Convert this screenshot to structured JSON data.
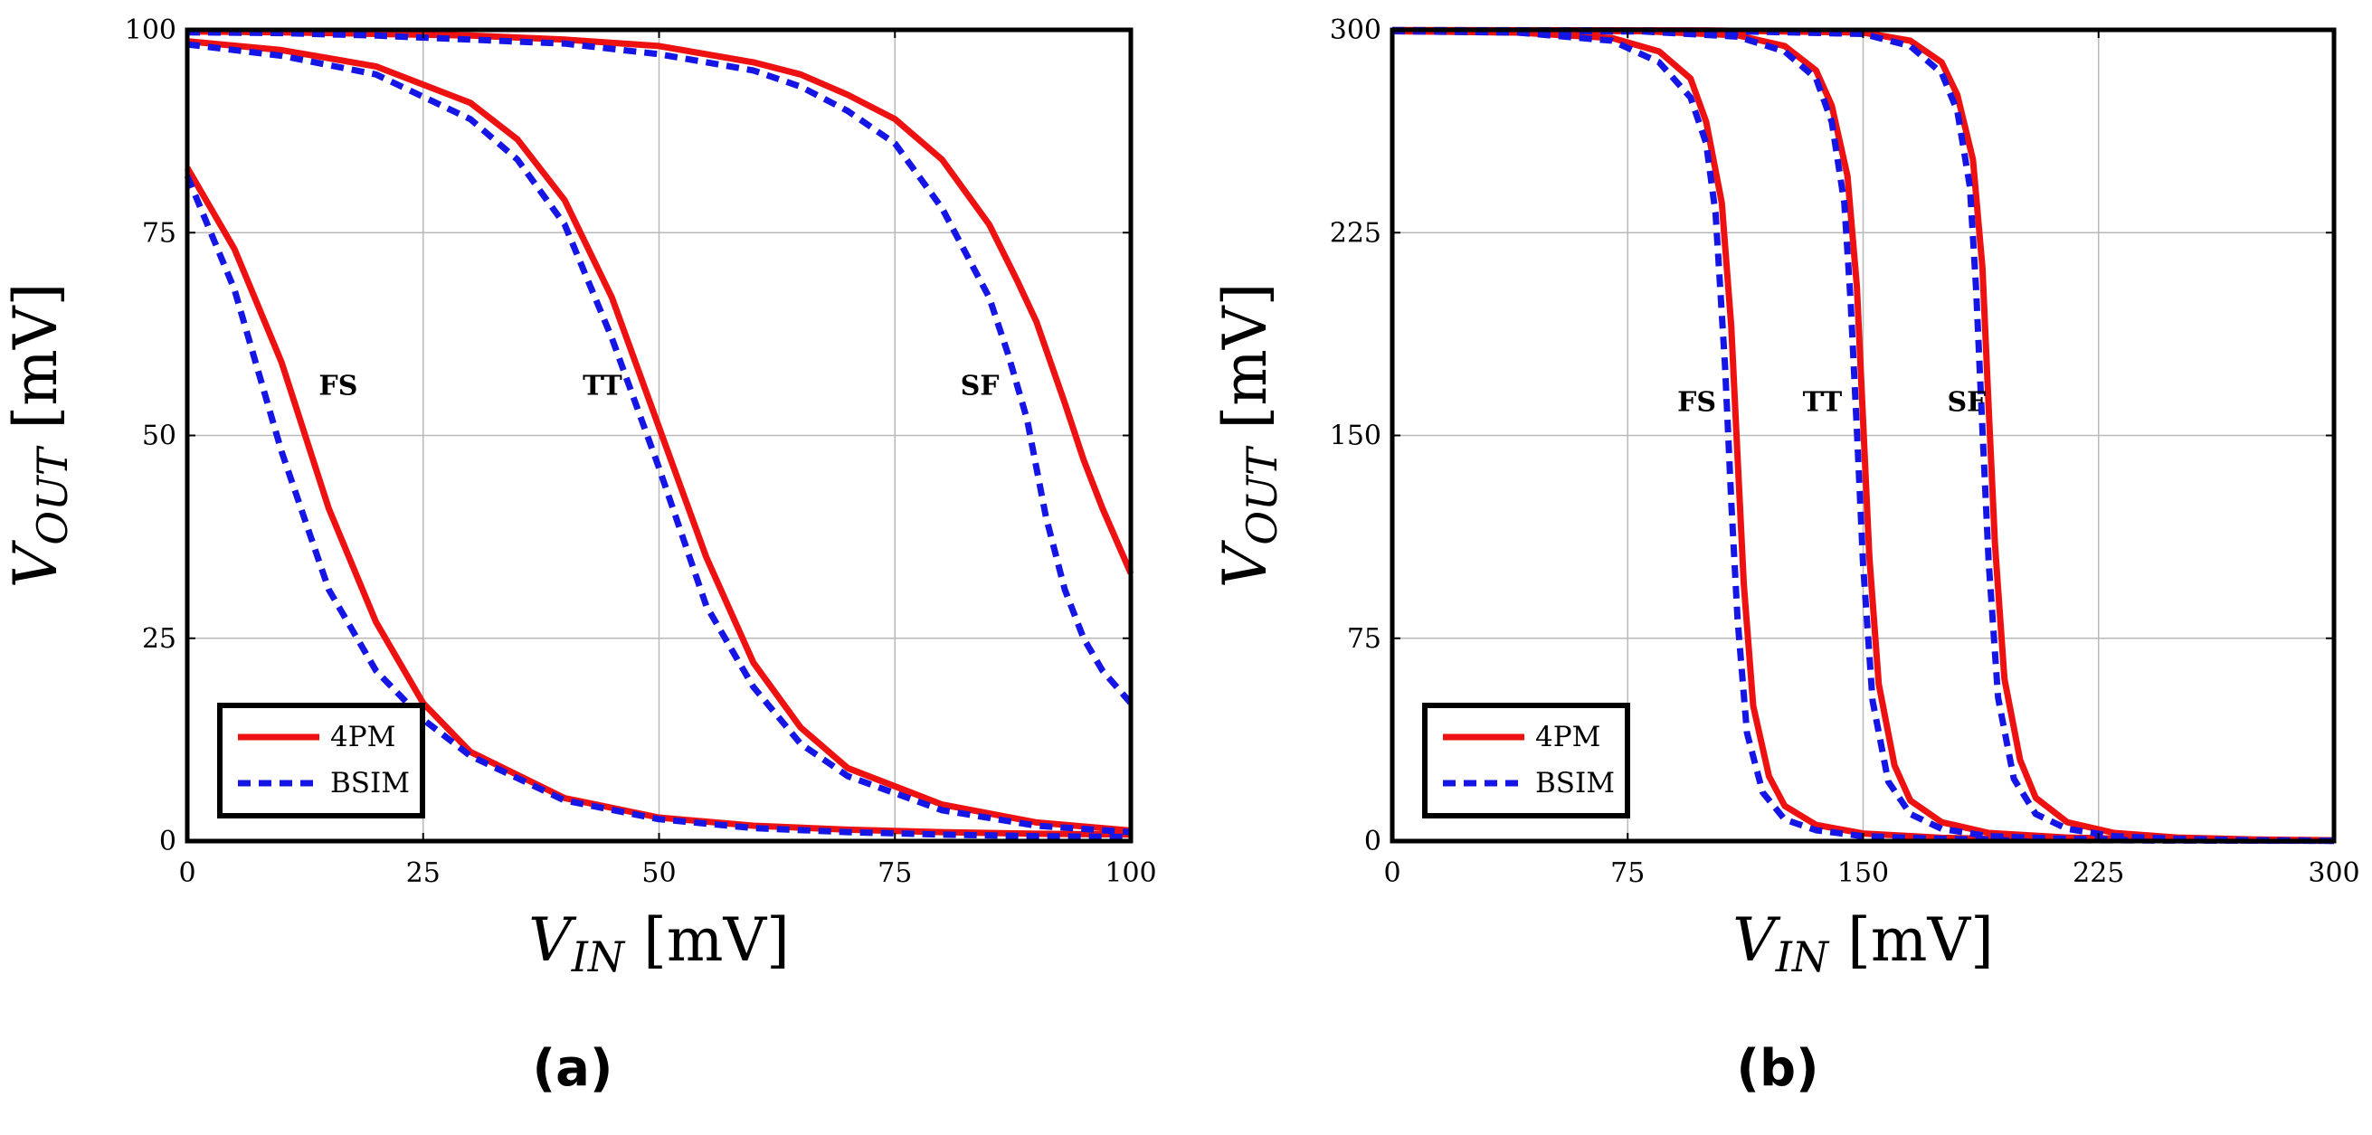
{
  "colors": {
    "model": "#ee1111",
    "bsim": "#1515e6",
    "grid": "#b9b9b9",
    "frame": "#000000"
  },
  "chart_data": [
    {
      "panel": "a",
      "caption": "(a)",
      "type": "line",
      "title": "",
      "xlabel": "V_IN [mV]",
      "ylabel": "V_OUT [mV]",
      "xlim": [
        0,
        100
      ],
      "ylim": [
        0,
        100
      ],
      "xticks": [
        0,
        25,
        50,
        75,
        100
      ],
      "yticks": [
        0,
        25,
        50,
        75,
        100
      ],
      "grid": true,
      "legend_position": "bottom-left",
      "legend": [
        "4PM",
        "BSIM"
      ],
      "series": [
        {
          "name": "4PM",
          "corner": "FS",
          "style": "solid",
          "x": [
            0,
            5,
            10,
            15,
            20,
            25,
            30,
            40,
            50,
            60,
            70,
            80,
            90,
            100
          ],
          "y": [
            83,
            73,
            59,
            41,
            27,
            17,
            11,
            5.3,
            2.9,
            1.9,
            1.4,
            1.1,
            0.9,
            0.8
          ]
        },
        {
          "name": "BSIM",
          "corner": "FS",
          "style": "dashed",
          "x": [
            0,
            5,
            10,
            15,
            20,
            25,
            30,
            40,
            50,
            60,
            70,
            80,
            90,
            100
          ],
          "y": [
            82,
            68,
            48,
            31,
            21,
            15,
            10.5,
            5,
            2.7,
            1.6,
            1.1,
            0.8,
            0.6,
            0.5
          ]
        },
        {
          "name": "4PM",
          "corner": "TT",
          "style": "solid",
          "x": [
            0,
            10,
            20,
            30,
            35,
            40,
            45,
            50,
            55,
            60,
            65,
            70,
            80,
            90,
            100
          ],
          "y": [
            98.6,
            97.5,
            95.5,
            91,
            86.5,
            79,
            67,
            51,
            35,
            22,
            14,
            9,
            4.5,
            2.3,
            1.3
          ]
        },
        {
          "name": "BSIM",
          "corner": "TT",
          "style": "dashed",
          "x": [
            0,
            10,
            20,
            30,
            35,
            40,
            45,
            50,
            55,
            60,
            65,
            70,
            80,
            90,
            100
          ],
          "y": [
            98.2,
            96.8,
            94.5,
            89,
            84,
            76,
            62,
            46,
            29,
            19,
            12,
            8,
            3.8,
            1.9,
            1.1
          ]
        },
        {
          "name": "4PM",
          "corner": "SF",
          "style": "solid",
          "x": [
            0,
            10,
            20,
            30,
            40,
            50,
            60,
            65,
            70,
            75,
            80,
            85,
            88,
            90,
            93,
            95,
            97,
            100
          ],
          "y": [
            99.8,
            99.7,
            99.5,
            99.3,
            98.8,
            98,
            96,
            94.5,
            92,
            89,
            84,
            76,
            69,
            64,
            54,
            47,
            41,
            33
          ]
        },
        {
          "name": "BSIM",
          "corner": "SF",
          "style": "dashed",
          "x": [
            0,
            10,
            20,
            30,
            40,
            50,
            60,
            65,
            70,
            75,
            80,
            85,
            87,
            89,
            90,
            91,
            93,
            95,
            97,
            100
          ],
          "y": [
            99.7,
            99.6,
            99.3,
            98.8,
            98.3,
            97,
            95,
            93,
            90,
            86,
            78,
            67,
            60,
            52,
            46,
            40,
            31,
            25,
            21,
            17
          ]
        }
      ],
      "annotations": [
        {
          "text": "FS",
          "x": 16,
          "y": 55
        },
        {
          "text": "TT",
          "x": 44,
          "y": 55
        },
        {
          "text": "SF",
          "x": 84,
          "y": 55
        }
      ]
    },
    {
      "panel": "b",
      "caption": "(b)",
      "type": "line",
      "title": "",
      "xlabel": "V_IN [mV]",
      "ylabel": "V_OUT [mV]",
      "xlim": [
        0,
        300
      ],
      "ylim": [
        0,
        300
      ],
      "xticks": [
        0,
        75,
        150,
        225,
        300
      ],
      "yticks": [
        0,
        75,
        150,
        225,
        300
      ],
      "grid": true,
      "legend_position": "bottom-left",
      "legend": [
        "4PM",
        "BSIM"
      ],
      "series": [
        {
          "name": "4PM",
          "corner": "FS",
          "style": "solid",
          "x": [
            0,
            40,
            70,
            85,
            95,
            100,
            105,
            108,
            110,
            112,
            115,
            120,
            125,
            135,
            150,
            175,
            200,
            250,
            300
          ],
          "y": [
            299.5,
            299,
            297,
            292,
            282,
            266,
            236,
            190,
            142,
            95,
            50,
            24,
            13,
            6,
            2.8,
            1.2,
            0.6,
            0.3,
            0.2
          ]
        },
        {
          "name": "BSIM",
          "corner": "FS",
          "style": "dashed",
          "x": [
            0,
            40,
            70,
            85,
            95,
            100,
            103,
            106,
            108,
            110,
            113,
            118,
            125,
            135,
            150,
            175,
            200,
            250,
            300
          ],
          "y": [
            299.5,
            299,
            296,
            288,
            275,
            258,
            232,
            176,
            125,
            82,
            40,
            18,
            8,
            4,
            1.8,
            0.8,
            0.4,
            0.2,
            0.1
          ]
        },
        {
          "name": "4PM",
          "corner": "TT",
          "style": "solid",
          "x": [
            0,
            80,
            110,
            125,
            135,
            140,
            145,
            148,
            150,
            152,
            155,
            160,
            165,
            175,
            190,
            215,
            250,
            300
          ],
          "y": [
            299.8,
            299.5,
            298,
            294,
            285,
            272,
            246,
            205,
            155,
            105,
            58,
            28,
            15,
            7,
            3,
            1.3,
            0.5,
            0.2
          ]
        },
        {
          "name": "BSIM",
          "corner": "TT",
          "style": "dashed",
          "x": [
            0,
            80,
            110,
            125,
            135,
            140,
            144,
            146,
            148,
            150,
            153,
            158,
            165,
            175,
            190,
            215,
            250,
            300
          ],
          "y": [
            299.8,
            299.4,
            297.5,
            292,
            282,
            266,
            236,
            200,
            152,
            102,
            52,
            22,
            10,
            4.5,
            1.8,
            0.8,
            0.3,
            0.1
          ]
        },
        {
          "name": "4PM",
          "corner": "SF",
          "style": "solid",
          "x": [
            0,
            100,
            150,
            165,
            175,
            180,
            185,
            188,
            190,
            192,
            195,
            200,
            205,
            215,
            230,
            250,
            275,
            300
          ],
          "y": [
            299.9,
            299.8,
            299,
            296,
            288,
            276,
            252,
            212,
            160,
            110,
            60,
            30,
            16,
            7,
            3,
            1.3,
            0.6,
            0.3
          ]
        },
        {
          "name": "BSIM",
          "corner": "SF",
          "style": "dashed",
          "x": [
            0,
            100,
            150,
            165,
            175,
            180,
            184,
            186,
            188,
            190,
            193,
            198,
            205,
            215,
            230,
            250,
            275,
            300
          ],
          "y": [
            299.9,
            299.7,
            298.5,
            294,
            284,
            270,
            242,
            204,
            152,
            103,
            53,
            23,
            10,
            4.5,
            1.8,
            0.8,
            0.3,
            0.1
          ]
        }
      ],
      "annotations": [
        {
          "text": "FS",
          "x": 97,
          "y": 159
        },
        {
          "text": "TT",
          "x": 137,
          "y": 159
        },
        {
          "text": "SF",
          "x": 183,
          "y": 159
        }
      ]
    }
  ]
}
